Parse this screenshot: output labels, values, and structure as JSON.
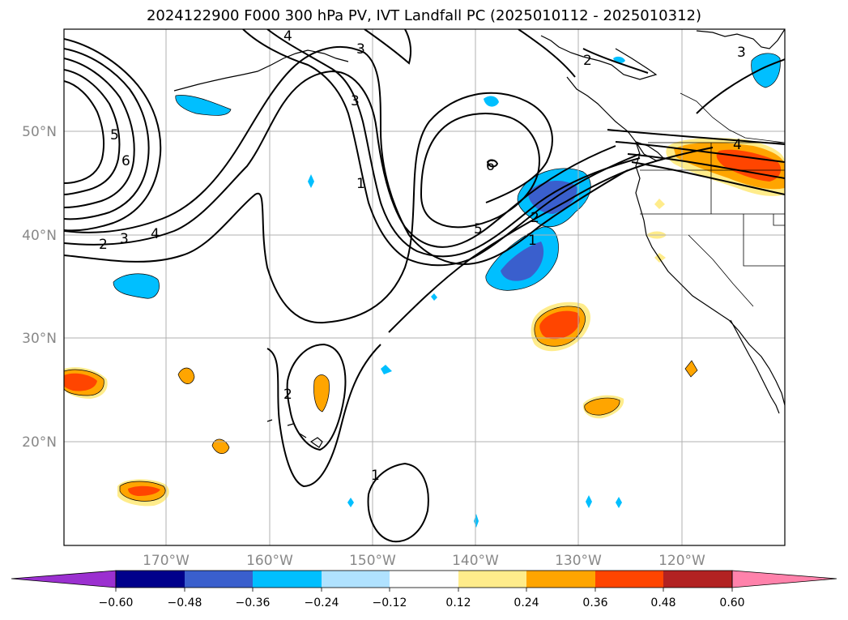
{
  "title": "2024122900 F000 300 hPa PV, IVT Landfall PC (2025010112 - 2025010312)",
  "lon_labels": [
    "170°W",
    "160°W",
    "150°W",
    "140°W",
    "130°W",
    "120°W"
  ],
  "lat_labels": [
    "50°N",
    "40°N",
    "30°N",
    "20°N"
  ],
  "contour_labels": [
    "5",
    "6",
    "2",
    "3",
    "4",
    "3",
    "4",
    "3",
    "1",
    "2",
    "5",
    "6",
    "2",
    "1",
    "4",
    "1",
    "2",
    "3"
  ],
  "colorbar": {
    "ticks": [
      "−0.60",
      "−0.48",
      "−0.36",
      "−0.24",
      "−0.12",
      "0.12",
      "0.24",
      "0.36",
      "0.48",
      "0.60"
    ],
    "colors": [
      "#9b30d0",
      "#00008b",
      "#3a5fcd",
      "#00bfff",
      "#b0e2ff",
      "#ffffff",
      "#ffec8b",
      "#ffa500",
      "#ff4500",
      "#b22222",
      "#ff82ab"
    ]
  },
  "colors": {
    "grid": "#b0b0b0",
    "contour": "#000000",
    "label_gray": "#888888"
  }
}
